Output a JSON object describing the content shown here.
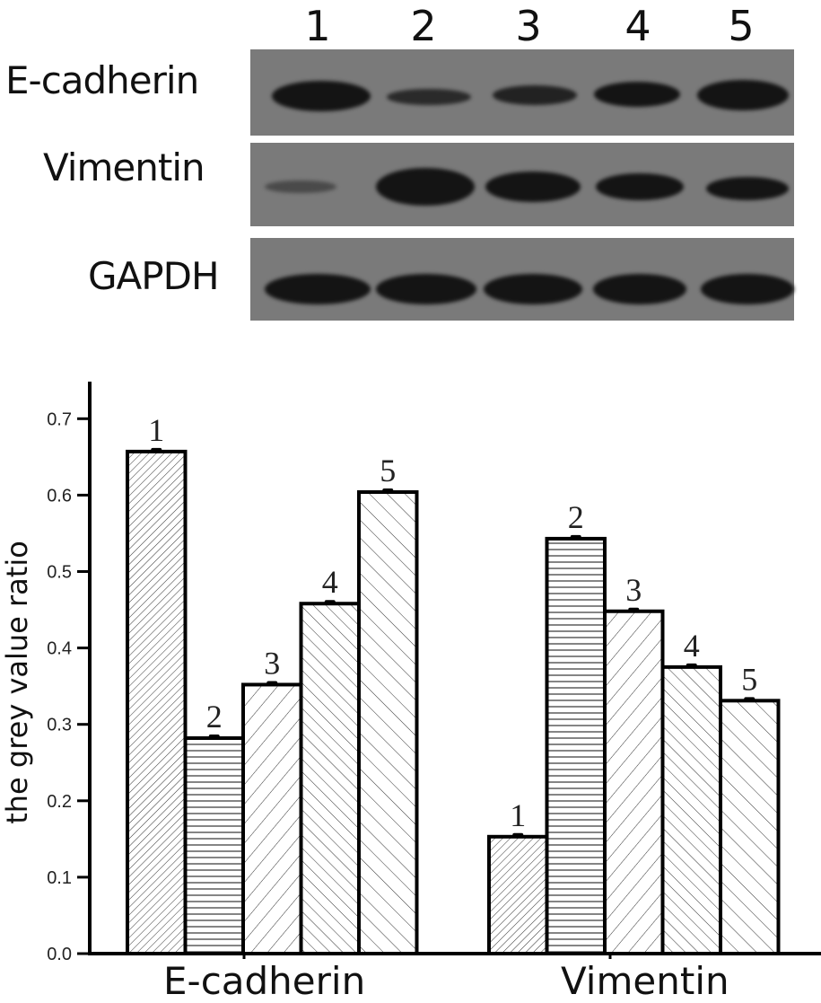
{
  "blot": {
    "lanes": [
      "1",
      "2",
      "3",
      "4",
      "5"
    ],
    "rows": [
      {
        "label": "E-cadherin",
        "intensity": [
          1.0,
          0.45,
          0.6,
          0.75,
          0.95
        ]
      },
      {
        "label": "Vimentin",
        "intensity": [
          0.35,
          1.0,
          0.85,
          0.7,
          0.65
        ]
      },
      {
        "label": "GAPDH",
        "intensity": [
          1.0,
          1.0,
          1.0,
          1.0,
          1.0
        ]
      }
    ]
  },
  "chart_data": {
    "type": "bar",
    "title": "",
    "xlabel": "",
    "ylabel": "the grey value ratio",
    "ylim": [
      0.0,
      0.75
    ],
    "yticks": [
      "0.0",
      "0.1",
      "0.2",
      "0.3",
      "0.4",
      "0.5",
      "0.6",
      "0.7"
    ],
    "categories": [
      "E-cadherin",
      "Vimentin"
    ],
    "series": [
      {
        "name": "1",
        "values": [
          0.657,
          0.153
        ],
        "pattern": "dense-diagonal-forward"
      },
      {
        "name": "2",
        "values": [
          0.282,
          0.543
        ],
        "pattern": "horizontal"
      },
      {
        "name": "3",
        "values": [
          0.352,
          0.448
        ],
        "pattern": "diagonal-forward"
      },
      {
        "name": "4",
        "values": [
          0.458,
          0.375
        ],
        "pattern": "diagonal-backward"
      },
      {
        "name": "5",
        "values": [
          0.604,
          0.331
        ],
        "pattern": "diagonal-backward-wide"
      }
    ],
    "bar_labels": [
      "1",
      "2",
      "3",
      "4",
      "5"
    ],
    "error_bars": true,
    "grid": false,
    "legend": "none (bar numbers above bars)"
  }
}
